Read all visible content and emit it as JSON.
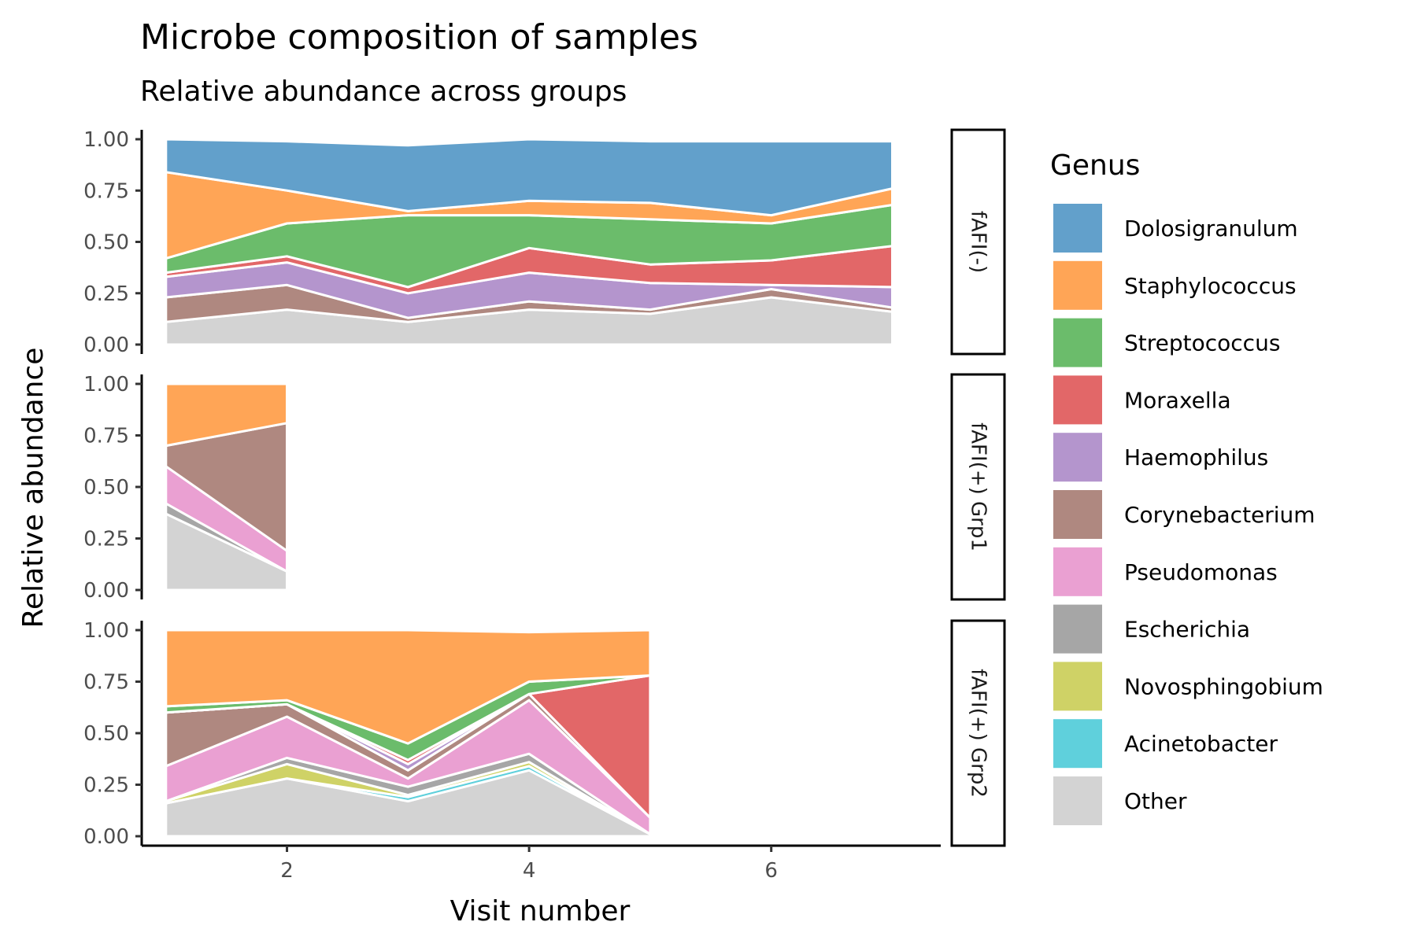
{
  "chart_data": {
    "type": "area",
    "title": "Microbe composition of samples",
    "subtitle": "Relative abundance across groups",
    "xlabel": "Visit number",
    "ylabel": "Relative abundance",
    "xlim": [
      0.8,
      7.4
    ],
    "ylim": [
      0,
      1
    ],
    "x_ticks": [
      2,
      4,
      6
    ],
    "y_ticks": [
      "0.00",
      "0.25",
      "0.50",
      "0.75",
      "1.00"
    ],
    "legend_title": "Genus",
    "legend_position": "right",
    "grid": false,
    "genera": [
      {
        "name": "Dolosigranulum",
        "color": "#62A0CB"
      },
      {
        "name": "Staphylococcus",
        "color": "#FFA556"
      },
      {
        "name": "Streptococcus",
        "color": "#6BBC6B"
      },
      {
        "name": "Moraxella",
        "color": "#E26768"
      },
      {
        "name": "Haemophilus",
        "color": "#B495CD"
      },
      {
        "name": "Corynebacterium",
        "color": "#AF8880"
      },
      {
        "name": "Pseudomonas",
        "color": "#EAA0D2"
      },
      {
        "name": "Escherichia",
        "color": "#A6A6A6"
      },
      {
        "name": "Novosphingobium",
        "color": "#CFD266"
      },
      {
        "name": "Acinetobacter",
        "color": "#5FD0DC"
      },
      {
        "name": "Other",
        "color": "#D3D3D3"
      }
    ],
    "panels": [
      {
        "label": "fAFI(-)",
        "x": [
          1,
          2,
          3,
          4,
          5,
          6,
          7
        ],
        "series": [
          {
            "name": "Other",
            "values": [
              0.11,
              0.17,
              0.11,
              0.17,
              0.15,
              0.23,
              0.16
            ]
          },
          {
            "name": "Acinetobacter",
            "values": [
              0,
              0,
              0,
              0,
              0,
              0,
              0
            ]
          },
          {
            "name": "Novosphingobium",
            "values": [
              0,
              0,
              0,
              0,
              0,
              0,
              0
            ]
          },
          {
            "name": "Escherichia",
            "values": [
              0,
              0,
              0,
              0,
              0,
              0,
              0
            ]
          },
          {
            "name": "Pseudomonas",
            "values": [
              0,
              0,
              0,
              0,
              0,
              0,
              0
            ]
          },
          {
            "name": "Corynebacterium",
            "values": [
              0.12,
              0.12,
              0.02,
              0.04,
              0.02,
              0.04,
              0.02
            ]
          },
          {
            "name": "Haemophilus",
            "values": [
              0.1,
              0.11,
              0.12,
              0.14,
              0.13,
              0.02,
              0.1
            ]
          },
          {
            "name": "Moraxella",
            "values": [
              0.02,
              0.03,
              0.03,
              0.12,
              0.09,
              0.12,
              0.2
            ]
          },
          {
            "name": "Streptococcus",
            "values": [
              0.07,
              0.16,
              0.35,
              0.16,
              0.22,
              0.18,
              0.2
            ]
          },
          {
            "name": "Staphylococcus",
            "values": [
              0.42,
              0.16,
              0.02,
              0.07,
              0.08,
              0.04,
              0.08
            ]
          },
          {
            "name": "Dolosigranulum",
            "values": [
              0.16,
              0.24,
              0.32,
              0.3,
              0.3,
              0.36,
              0.23
            ]
          }
        ]
      },
      {
        "label": "fAFI(+) Grp1",
        "x": [
          1,
          2
        ],
        "series": [
          {
            "name": "Other",
            "values": [
              0.37,
              0.09
            ]
          },
          {
            "name": "Acinetobacter",
            "values": [
              0,
              0
            ]
          },
          {
            "name": "Novosphingobium",
            "values": [
              0,
              0
            ]
          },
          {
            "name": "Escherichia",
            "values": [
              0.05,
              0
            ]
          },
          {
            "name": "Pseudomonas",
            "values": [
              0.18,
              0.1
            ]
          },
          {
            "name": "Corynebacterium",
            "values": [
              0.1,
              0.62
            ]
          },
          {
            "name": "Haemophilus",
            "values": [
              0,
              0
            ]
          },
          {
            "name": "Moraxella",
            "values": [
              0,
              0
            ]
          },
          {
            "name": "Streptococcus",
            "values": [
              0,
              0
            ]
          },
          {
            "name": "Staphylococcus",
            "values": [
              0.3,
              0.19
            ]
          },
          {
            "name": "Dolosigranulum",
            "values": [
              0,
              0
            ]
          }
        ]
      },
      {
        "label": "fAFI(+) Grp2",
        "x": [
          1,
          2,
          3,
          4,
          5
        ],
        "series": [
          {
            "name": "Other",
            "values": [
              0.16,
              0.28,
              0.17,
              0.32,
              0.01
            ]
          },
          {
            "name": "Acinetobacter",
            "values": [
              0,
              0,
              0.02,
              0.02,
              0
            ]
          },
          {
            "name": "Novosphingobium",
            "values": [
              0.01,
              0.07,
              0.01,
              0.02,
              0
            ]
          },
          {
            "name": "Escherichia",
            "values": [
              0,
              0.03,
              0.04,
              0.04,
              0
            ]
          },
          {
            "name": "Pseudomonas",
            "values": [
              0.17,
              0.2,
              0.04,
              0.26,
              0.08
            ]
          },
          {
            "name": "Corynebacterium",
            "values": [
              0.26,
              0.06,
              0.04,
              0.03,
              0
            ]
          },
          {
            "name": "Haemophilus",
            "values": [
              0,
              0,
              0.03,
              0,
              0
            ]
          },
          {
            "name": "Moraxella",
            "values": [
              0,
              0,
              0.02,
              0,
              0.69
            ]
          },
          {
            "name": "Streptococcus",
            "values": [
              0.03,
              0.02,
              0.08,
              0.06,
              0
            ]
          },
          {
            "name": "Staphylococcus",
            "values": [
              0.37,
              0.34,
              0.55,
              0.24,
              0.22
            ]
          },
          {
            "name": "Dolosigranulum",
            "values": [
              0,
              0,
              0,
              0,
              0
            ]
          }
        ]
      }
    ]
  }
}
